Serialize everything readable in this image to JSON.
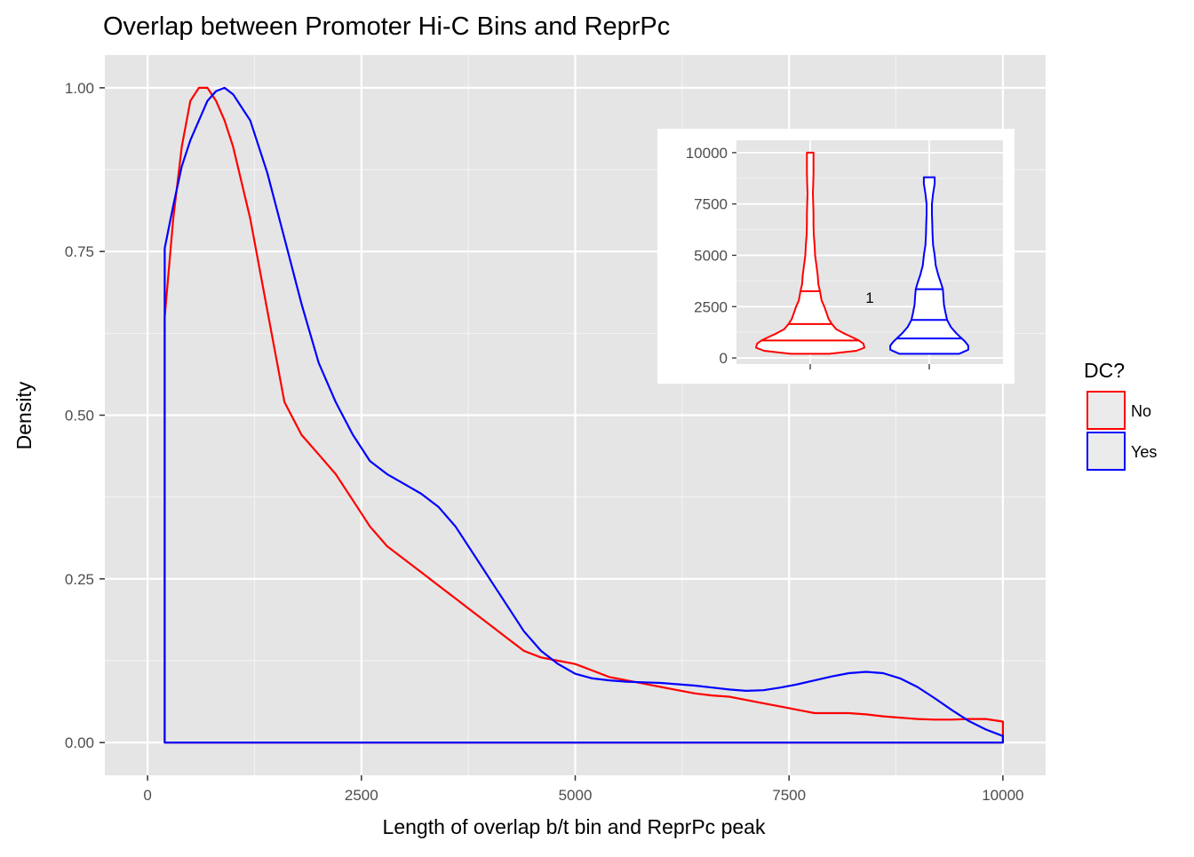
{
  "chart_data": {
    "type": "line",
    "title": "Overlap between Promoter Hi-C Bins and ReprPc",
    "xlabel": "Length of overlap b/t bin and ReprPc peak",
    "ylabel": "Density",
    "xlim": [
      -500,
      10500
    ],
    "ylim": [
      -0.05,
      1.05
    ],
    "x_ticks": [
      0,
      2500,
      5000,
      7500,
      10000
    ],
    "x_tick_labels": [
      "0",
      "2500",
      "5000",
      "7500",
      "10000"
    ],
    "y_ticks": [
      0,
      0.25,
      0.5,
      0.75,
      1.0
    ],
    "y_tick_labels": [
      "0.00",
      "0.25",
      "0.50",
      "0.75",
      "1.00"
    ],
    "grid": true,
    "legend": {
      "title": "DC?",
      "position": "right"
    },
    "series": [
      {
        "name": "No",
        "color": "#ff0000",
        "x": [
          200,
          200,
          300,
          400,
          500,
          600,
          700,
          800,
          900,
          1000,
          1200,
          1400,
          1600,
          1800,
          2000,
          2200,
          2400,
          2600,
          2800,
          3000,
          3200,
          3400,
          3600,
          3800,
          4000,
          4200,
          4400,
          4600,
          4800,
          5000,
          5200,
          5400,
          5600,
          5800,
          6000,
          6200,
          6400,
          6600,
          6800,
          7000,
          7200,
          7400,
          7600,
          7800,
          8000,
          8200,
          8400,
          8600,
          8800,
          9000,
          9200,
          9400,
          9600,
          9800,
          10000,
          10000
        ],
        "y": [
          0,
          0.65,
          0.8,
          0.91,
          0.98,
          1.0,
          1.0,
          0.98,
          0.95,
          0.91,
          0.8,
          0.66,
          0.52,
          0.47,
          0.44,
          0.41,
          0.37,
          0.33,
          0.3,
          0.28,
          0.26,
          0.24,
          0.22,
          0.2,
          0.18,
          0.16,
          0.14,
          0.13,
          0.125,
          0.12,
          0.11,
          0.1,
          0.095,
          0.09,
          0.085,
          0.08,
          0.075,
          0.072,
          0.07,
          0.065,
          0.06,
          0.055,
          0.05,
          0.045,
          0.045,
          0.045,
          0.043,
          0.04,
          0.038,
          0.036,
          0.035,
          0.035,
          0.036,
          0.036,
          0.032,
          0
        ],
        "closed": true
      },
      {
        "name": "Yes",
        "color": "#0000ff",
        "x": [
          200,
          200,
          300,
          400,
          500,
          600,
          700,
          800,
          900,
          1000,
          1200,
          1400,
          1600,
          1800,
          2000,
          2200,
          2400,
          2600,
          2800,
          3000,
          3200,
          3400,
          3600,
          3800,
          4000,
          4200,
          4400,
          4600,
          4800,
          5000,
          5200,
          5400,
          5600,
          5800,
          6000,
          6200,
          6400,
          6600,
          6800,
          7000,
          7200,
          7400,
          7600,
          7800,
          8000,
          8200,
          8400,
          8600,
          8800,
          9000,
          9200,
          9400,
          9600,
          9800,
          10000,
          10000
        ],
        "y": [
          0,
          0.755,
          0.82,
          0.88,
          0.92,
          0.95,
          0.98,
          0.995,
          1.0,
          0.99,
          0.95,
          0.87,
          0.77,
          0.67,
          0.58,
          0.52,
          0.47,
          0.43,
          0.41,
          0.395,
          0.38,
          0.36,
          0.33,
          0.29,
          0.25,
          0.21,
          0.17,
          0.14,
          0.12,
          0.105,
          0.098,
          0.095,
          0.093,
          0.092,
          0.091,
          0.089,
          0.087,
          0.084,
          0.081,
          0.079,
          0.08,
          0.084,
          0.089,
          0.095,
          0.101,
          0.106,
          0.108,
          0.106,
          0.098,
          0.085,
          0.068,
          0.05,
          0.033,
          0.02,
          0.01,
          0
        ],
        "closed": true
      }
    ],
    "inset": {
      "type": "violin",
      "y_ticks": [
        0,
        2500,
        5000,
        7500,
        10000
      ],
      "y_tick_labels": [
        "0",
        "2500",
        "5000",
        "7500",
        "10000"
      ],
      "ylim": [
        -300,
        10600
      ],
      "annotation": "1",
      "violins": [
        {
          "name": "No",
          "color": "#ff0000",
          "quantiles": [
            850,
            1650,
            3250
          ],
          "profile_y": [
            200,
            350,
            500,
            700,
            850,
            1000,
            1200,
            1400,
            1650,
            1900,
            2200,
            2500,
            2800,
            3250,
            3600,
            4000,
            4400,
            5000,
            5500,
            6000,
            6500,
            7000,
            7500,
            8000,
            8500,
            9000,
            9500,
            10000
          ],
          "half_width": [
            0.35,
            0.85,
            1.0,
            0.98,
            0.9,
            0.78,
            0.62,
            0.48,
            0.4,
            0.34,
            0.3,
            0.26,
            0.21,
            0.18,
            0.15,
            0.14,
            0.12,
            0.09,
            0.08,
            0.065,
            0.06,
            0.06,
            0.055,
            0.05,
            0.055,
            0.06,
            0.06,
            0.06
          ]
        },
        {
          "name": "Yes",
          "color": "#0000ff",
          "quantiles": [
            950,
            1850,
            3350
          ],
          "profile_y": [
            200,
            400,
            600,
            800,
            950,
            1200,
            1500,
            1850,
            2200,
            2600,
            3000,
            3350,
            3700,
            4000,
            4500,
            5000,
            5500,
            6000,
            6500,
            7000,
            7500,
            8000,
            8500,
            8800
          ],
          "half_width": [
            0.55,
            0.72,
            0.72,
            0.66,
            0.6,
            0.5,
            0.4,
            0.33,
            0.3,
            0.27,
            0.26,
            0.25,
            0.21,
            0.17,
            0.12,
            0.1,
            0.07,
            0.06,
            0.055,
            0.05,
            0.05,
            0.07,
            0.1,
            0.1
          ]
        }
      ]
    }
  }
}
